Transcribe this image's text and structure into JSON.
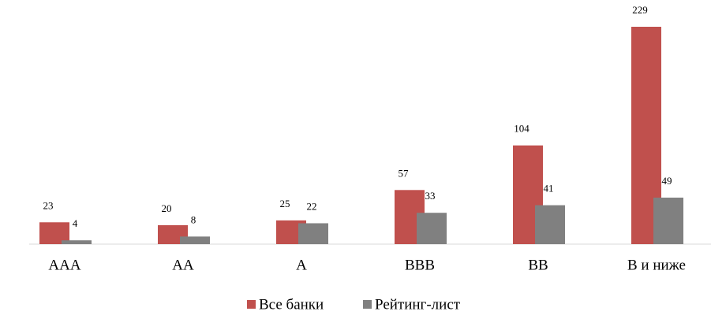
{
  "chart_data": {
    "type": "bar",
    "categories": [
      "AAA",
      "AA",
      "A",
      "BBB",
      "BB",
      "В и ниже"
    ],
    "series": [
      {
        "name": "Все банки",
        "color": "#c0504d",
        "values": [
          23,
          20,
          25,
          57,
          104,
          229
        ]
      },
      {
        "name": "Рейтинг-лист",
        "color": "#808080",
        "values": [
          4,
          8,
          22,
          33,
          41,
          49
        ]
      }
    ],
    "legend": "bottom"
  }
}
